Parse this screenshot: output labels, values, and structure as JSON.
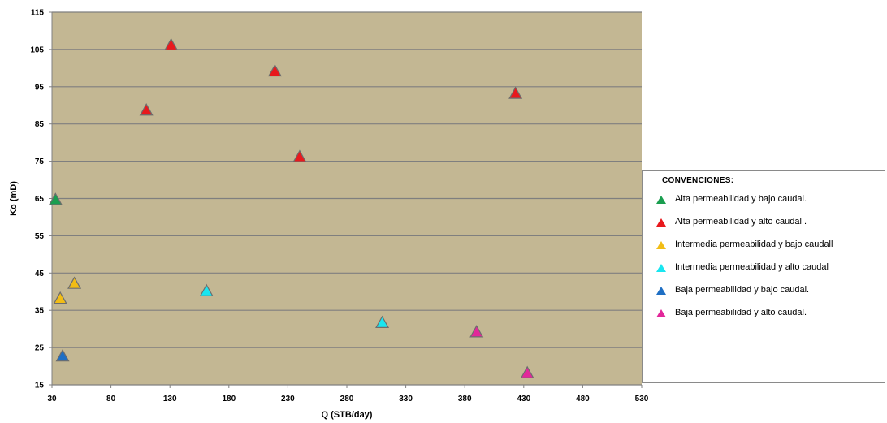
{
  "chart_data": {
    "type": "scatter",
    "xlabel": "Q (STB/day)",
    "ylabel": "Ko (mD)",
    "xlim": [
      30,
      530
    ],
    "ylim": [
      15,
      115
    ],
    "xticks": [
      30,
      80,
      130,
      180,
      230,
      280,
      330,
      380,
      430,
      480,
      530
    ],
    "yticks": [
      15,
      25,
      35,
      45,
      55,
      65,
      75,
      85,
      95,
      105,
      115
    ],
    "grid": "horizontal",
    "background": "#c3b793",
    "legend": {
      "title": "CONVENCIONES:",
      "placement": "right"
    },
    "series": [
      {
        "name": "Alta permeabilidad y bajo caudal.",
        "color": "#1a9e4f",
        "marker": "triangle",
        "points": [
          [
            33,
            64.5
          ]
        ]
      },
      {
        "name": "Alta permeabilidad y alto caudal .",
        "color": "#e8191d",
        "marker": "triangle",
        "points": [
          [
            110,
            88.5
          ],
          [
            131,
            106
          ],
          [
            219,
            99
          ],
          [
            240,
            76
          ],
          [
            423,
            93
          ]
        ]
      },
      {
        "name": "Intermedia permeabilidad y bajo caudall",
        "color": "#f2bd15",
        "marker": "triangle",
        "points": [
          [
            37,
            38
          ],
          [
            49,
            42
          ]
        ]
      },
      {
        "name": "Intermedia permeabilidad y alto caudal",
        "color": "#19e6f0",
        "marker": "triangle",
        "points": [
          [
            161,
            40
          ],
          [
            310,
            31.5
          ]
        ]
      },
      {
        "name": "Baja permeabilidad y bajo caudal.",
        "color": "#1f6fc4",
        "marker": "triangle",
        "points": [
          [
            39,
            22.5
          ]
        ]
      },
      {
        "name": "Baja permeabilidad y alto caudal.",
        "color": "#e2279a",
        "marker": "triangle",
        "points": [
          [
            390,
            29
          ],
          [
            433,
            18
          ]
        ]
      }
    ]
  }
}
